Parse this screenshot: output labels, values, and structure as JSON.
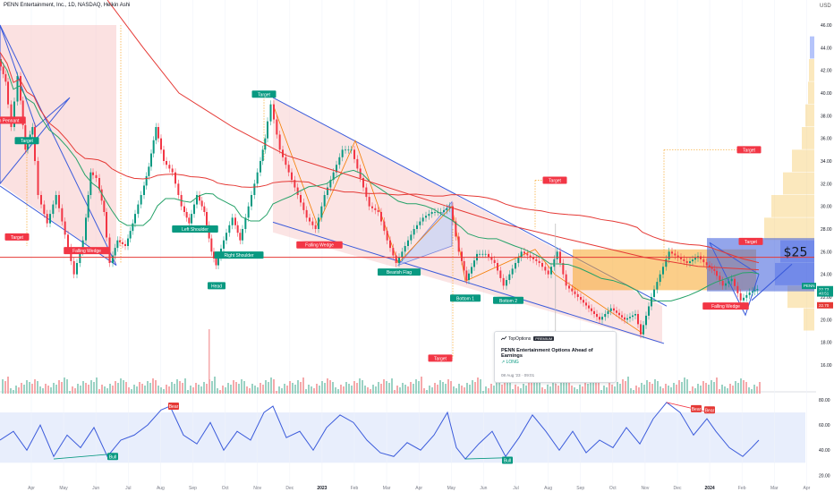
{
  "header": {
    "symbol_title": "PENN Entertainment, Inc., 1D, NASDAQ, Heikin Ashi",
    "currency": "USD"
  },
  "chart_data": {
    "type": "candlestick",
    "symbol": "PENN",
    "interval": "1D",
    "exchange": "NASDAQ",
    "candle_style": "Heikin Ashi",
    "price_axis": {
      "min": 16,
      "max": 46,
      "ticks": [
        46,
        44,
        42,
        40,
        38,
        36,
        34,
        32,
        30,
        28,
        26,
        24,
        22,
        20,
        18,
        16
      ]
    },
    "time_axis": [
      "Apr",
      "May",
      "Jun",
      "Jul",
      "Aug",
      "Sep",
      "Oct",
      "Nov",
      "Dec",
      "2023",
      "Feb",
      "Mar",
      "Apr",
      "May",
      "Jun",
      "Jul",
      "Aug",
      "Sep",
      "Oct",
      "Nov",
      "Dec",
      "2024",
      "Feb",
      "Mar",
      "Apr"
    ],
    "price_series_approx": [
      [
        0,
        43
      ],
      [
        8,
        41
      ],
      [
        15,
        37
      ],
      [
        22,
        41.5
      ],
      [
        30,
        35
      ],
      [
        38,
        37
      ],
      [
        45,
        31
      ],
      [
        55,
        28.5
      ],
      [
        65,
        31
      ],
      [
        75,
        27.5
      ],
      [
        85,
        24
      ],
      [
        95,
        27
      ],
      [
        103,
        33
      ],
      [
        110,
        32.5
      ],
      [
        118,
        29.5
      ],
      [
        125,
        25
      ],
      [
        133,
        27
      ],
      [
        142,
        26.5
      ],
      [
        150,
        28.5
      ],
      [
        160,
        31
      ],
      [
        168,
        33.5
      ],
      [
        176,
        37
      ],
      [
        185,
        34
      ],
      [
        195,
        33
      ],
      [
        205,
        30
      ],
      [
        213,
        28.5
      ],
      [
        222,
        31
      ],
      [
        230,
        29.5
      ],
      [
        238,
        26
      ],
      [
        243,
        24.8
      ],
      [
        252,
        27
      ],
      [
        262,
        29
      ],
      [
        270,
        27
      ],
      [
        280,
        30
      ],
      [
        290,
        33
      ],
      [
        298,
        36
      ],
      [
        305,
        39
      ],
      [
        315,
        35
      ],
      [
        325,
        33
      ],
      [
        335,
        31
      ],
      [
        345,
        29
      ],
      [
        355,
        28
      ],
      [
        365,
        31
      ],
      [
        375,
        33
      ],
      [
        385,
        35
      ],
      [
        395,
        35
      ],
      [
        405,
        32.5
      ],
      [
        415,
        30
      ],
      [
        425,
        29.5
      ],
      [
        435,
        27
      ],
      [
        445,
        25
      ],
      [
        455,
        26.5
      ],
      [
        465,
        28
      ],
      [
        475,
        29
      ],
      [
        485,
        29.5
      ],
      [
        495,
        29.5
      ],
      [
        505,
        30
      ],
      [
        515,
        26
      ],
      [
        523,
        23.5
      ],
      [
        535,
        25.8
      ],
      [
        545,
        25.8
      ],
      [
        555,
        25
      ],
      [
        565,
        23
      ],
      [
        575,
        24.5
      ],
      [
        585,
        26
      ],
      [
        595,
        25.5
      ],
      [
        605,
        25
      ],
      [
        615,
        24
      ],
      [
        625,
        26
      ],
      [
        635,
        23
      ],
      [
        648,
        22
      ],
      [
        660,
        21
      ],
      [
        672,
        20
      ],
      [
        685,
        21
      ],
      [
        700,
        20
      ],
      [
        712,
        20.5
      ],
      [
        718,
        18.7
      ],
      [
        730,
        22
      ],
      [
        740,
        24
      ],
      [
        750,
        26
      ],
      [
        760,
        25.5
      ],
      [
        770,
        25
      ],
      [
        782,
        25.6
      ],
      [
        792,
        24.8
      ],
      [
        800,
        24.3
      ],
      [
        810,
        23
      ],
      [
        820,
        23.6
      ],
      [
        830,
        21.7
      ],
      [
        840,
        22.4
      ],
      [
        848,
        22.7
      ]
    ],
    "moving_averages": [
      {
        "color": "#e53935"
      },
      {
        "color": "#26a269"
      }
    ],
    "horizontal_line": {
      "price": 25.5,
      "color": "#e53935"
    },
    "price_labels": [
      {
        "text": "PENN",
        "price": 22.7,
        "color": "#089981"
      },
      {
        "text": "22.73",
        "price": 22.73,
        "color": "#089981"
      },
      {
        "text": "40:51",
        "price": 22.35,
        "color": "#089981"
      },
      {
        "text": "22.70",
        "price": 21.7,
        "color": "#e53935"
      }
    ],
    "annotations": [
      {
        "text": "Target",
        "kind": "red",
        "x": 19,
        "price": 27.3
      },
      {
        "text": "Target",
        "kind": "green",
        "x": 30,
        "price": 35.8
      },
      {
        "text": "n Pennant",
        "kind": "red",
        "x": 10,
        "price": 37.6
      },
      {
        "text": "Falling Wedge",
        "kind": "red",
        "x": 97,
        "price": 26.1
      },
      {
        "text": "Target",
        "kind": "green",
        "x": 295,
        "price": 39.9
      },
      {
        "text": "Left Shoulder",
        "kind": "green",
        "x": 218,
        "price": 28.0
      },
      {
        "text": "Right Shoulder",
        "kind": "green",
        "x": 267,
        "price": 25.7
      },
      {
        "text": "Head",
        "kind": "green",
        "x": 242,
        "price": 23.0
      },
      {
        "text": "Falling Wedge",
        "kind": "red",
        "x": 357,
        "price": 26.6
      },
      {
        "text": "Bearish Flag",
        "kind": "green",
        "x": 446,
        "price": 24.2
      },
      {
        "text": "Target",
        "kind": "red",
        "x": 620,
        "price": 32.3
      },
      {
        "text": "Bottom 1",
        "kind": "green",
        "x": 520,
        "price": 21.9
      },
      {
        "text": "Bottom 2",
        "kind": "green",
        "x": 568,
        "price": 21.7
      },
      {
        "text": "Target",
        "kind": "red",
        "x": 492,
        "price": 16.6
      },
      {
        "text": "Target",
        "kind": "red",
        "x": 837,
        "price": 35.0
      },
      {
        "text": "Target",
        "kind": "red",
        "x": 839,
        "price": 26.9
      },
      {
        "text": "Falling Wedge",
        "kind": "red",
        "x": 811,
        "price": 21.2
      },
      {
        "text": "$25",
        "kind": "big",
        "x": 889,
        "price": 25.6
      }
    ],
    "volume_profile": [
      {
        "price": 20,
        "width": 12,
        "color": "#f7cb6d"
      },
      {
        "price": 22,
        "width": 30,
        "color": "#f7cb6d"
      },
      {
        "price": 24,
        "width": 44,
        "color": "#5b7cf5"
      },
      {
        "price": 26,
        "width": 38,
        "color": "#5b7cf5"
      },
      {
        "price": 28,
        "width": 56,
        "color": "#f7cb6d"
      },
      {
        "price": 30,
        "width": 48,
        "color": "#f7cb6d"
      },
      {
        "price": 32,
        "width": 35,
        "color": "#f7cb6d"
      },
      {
        "price": 34,
        "width": 25,
        "color": "#f7cb6d"
      },
      {
        "price": 36,
        "width": 14,
        "color": "#f7cb6d"
      },
      {
        "price": 38,
        "width": 10,
        "color": "#f7cb6d"
      },
      {
        "price": 40,
        "width": 7,
        "color": "#f7cb6d"
      },
      {
        "price": 42,
        "width": 6,
        "color": "#f7cb6d"
      },
      {
        "price": 44,
        "width": 5,
        "color": "#5b7cf5"
      }
    ],
    "rsi": {
      "ticks": [
        80,
        60,
        40,
        20
      ],
      "band": [
        30,
        70
      ],
      "line_color": "#3b5bdb",
      "values_approx": [
        [
          0,
          48
        ],
        [
          15,
          55
        ],
        [
          30,
          40
        ],
        [
          45,
          60
        ],
        [
          60,
          35
        ],
        [
          75,
          52
        ],
        [
          90,
          42
        ],
        [
          105,
          58
        ],
        [
          120,
          35
        ],
        [
          135,
          48
        ],
        [
          150,
          52
        ],
        [
          165,
          60
        ],
        [
          180,
          72
        ],
        [
          190,
          75
        ],
        [
          205,
          52
        ],
        [
          220,
          45
        ],
        [
          235,
          62
        ],
        [
          250,
          40
        ],
        [
          265,
          55
        ],
        [
          280,
          48
        ],
        [
          295,
          70
        ],
        [
          305,
          75
        ],
        [
          320,
          50
        ],
        [
          335,
          55
        ],
        [
          350,
          40
        ],
        [
          365,
          58
        ],
        [
          380,
          68
        ],
        [
          395,
          62
        ],
        [
          410,
          48
        ],
        [
          425,
          38
        ],
        [
          440,
          35
        ],
        [
          455,
          46
        ],
        [
          470,
          40
        ],
        [
          485,
          52
        ],
        [
          500,
          70
        ],
        [
          510,
          42
        ],
        [
          520,
          33
        ],
        [
          535,
          45
        ],
        [
          550,
          55
        ],
        [
          565,
          35
        ],
        [
          580,
          50
        ],
        [
          595,
          68
        ],
        [
          610,
          55
        ],
        [
          625,
          40
        ],
        [
          640,
          55
        ],
        [
          655,
          38
        ],
        [
          670,
          48
        ],
        [
          685,
          42
        ],
        [
          700,
          58
        ],
        [
          715,
          45
        ],
        [
          730,
          65
        ],
        [
          745,
          78
        ],
        [
          760,
          70
        ],
        [
          775,
          52
        ],
        [
          790,
          65
        ],
        [
          800,
          55
        ],
        [
          815,
          42
        ],
        [
          830,
          35
        ],
        [
          840,
          42
        ],
        [
          848,
          48
        ]
      ],
      "labels": [
        {
          "text": "Bull",
          "x": 126,
          "value": 35,
          "color": "#089981"
        },
        {
          "text": "Bear",
          "x": 194,
          "value": 75,
          "color": "#e53935"
        },
        {
          "text": "Bull",
          "x": 567,
          "value": 32,
          "color": "#089981"
        },
        {
          "text": "Bear",
          "x": 778,
          "value": 73,
          "color": "#e53935"
        },
        {
          "text": "Bear",
          "x": 793,
          "value": 72,
          "color": "#e53935"
        }
      ]
    },
    "colors": {
      "up": "#089981",
      "down": "#f23645",
      "rsi_band": "#e8eefc"
    }
  },
  "idea_card": {
    "brand": "TopOptions",
    "badge": "PREMIUM",
    "title": "PENN Entertainment Options Ahead of Earnings",
    "direction": "LONG",
    "date": "08 Aug '23 · 09:01"
  }
}
